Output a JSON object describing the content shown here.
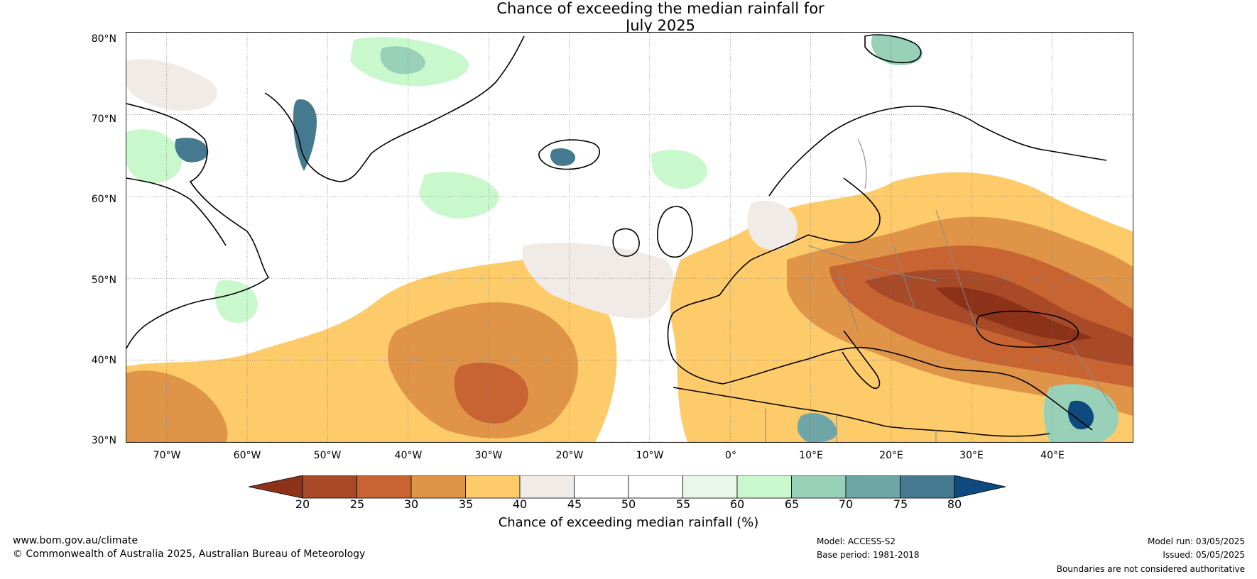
{
  "title": {
    "line1": "Chance of exceeding the median rainfall for",
    "line2": "July 2025"
  },
  "map": {
    "lat_labels": [
      "80°N",
      "70°N",
      "60°N",
      "50°N",
      "40°N",
      "30°N"
    ],
    "lon_labels": [
      "70°W",
      "60°W",
      "50°W",
      "40°W",
      "30°W",
      "20°W",
      "10°W",
      "0°",
      "10°E",
      "20°E",
      "30°E",
      "40°E"
    ],
    "lat_range": [
      30,
      80
    ],
    "lon_range": [
      -75,
      50
    ],
    "gridlines": true
  },
  "colorbar": {
    "ticks": [
      "20",
      "25",
      "30",
      "35",
      "40",
      "45",
      "50",
      "55",
      "60",
      "65",
      "70",
      "75",
      "80"
    ],
    "label": "Chance of exceeding median rainfall (%)",
    "colors": [
      "#8b3219",
      "#a84a28",
      "#c86432",
      "#e09448",
      "#fecb6a",
      "#f0ebe6",
      "#ffffff",
      "#ffffff",
      "#e9f6ea",
      "#c9f8cc",
      "#98d0b8",
      "#6ea6a8",
      "#44798f",
      "#0e4a7e"
    ]
  },
  "footer": {
    "website": "www.bom.gov.au/climate",
    "copyright": "© Commonwealth of Australia 2025, Australian Bureau of Meteorology",
    "model": "Model: ACCESS-S2",
    "base_period": "Base period: 1981-2018",
    "model_run": "Model run: 03/05/2025",
    "issued": "Issued: 05/05/2025",
    "disclaimer": "Boundaries are not considered authoritative"
  }
}
